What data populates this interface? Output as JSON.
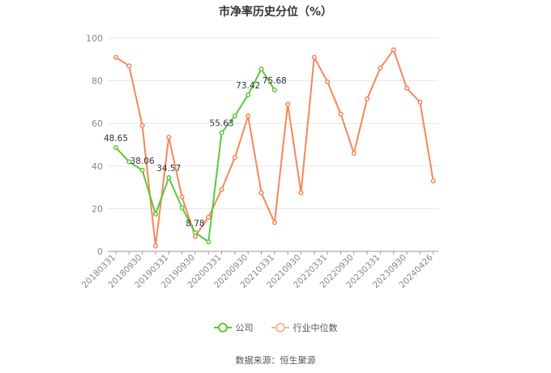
{
  "chart_data": {
    "type": "line",
    "title": "市净率历史分位（%）",
    "ylim": [
      0,
      100
    ],
    "yticks": [
      0,
      20,
      40,
      60,
      80,
      100
    ],
    "x_tick_labels": [
      "20180331",
      "20180930",
      "20190331",
      "20190930",
      "20200331",
      "20200930",
      "20210331",
      "20210930",
      "20220331",
      "20220930",
      "20230331",
      "20230930",
      "20240426"
    ],
    "grid": true,
    "legend_position": "bottom",
    "series": [
      {
        "name": "公司",
        "color": "#5cc83a",
        "x_index": [
          0,
          1,
          2,
          3,
          4,
          5,
          6,
          7,
          8,
          9,
          10,
          11,
          12
        ],
        "values": [
          48.65,
          42.0,
          38.06,
          17.5,
          34.57,
          20.5,
          8.78,
          4.5,
          55.63,
          63.5,
          73.42,
          85.5,
          75.68
        ],
        "labels": {
          "0": "48.65",
          "2": "38.06",
          "4": "34.57",
          "6": "8.78",
          "8": "55.63",
          "10": "73.42",
          "12": "75.68"
        }
      },
      {
        "name": "行业中位数",
        "color": "#f5875a",
        "x_index": [
          0,
          1,
          2,
          3,
          4,
          5,
          6,
          7,
          8,
          9,
          10,
          11,
          12,
          13,
          14,
          15,
          16,
          17,
          18,
          19,
          20,
          21,
          22,
          23,
          24
        ],
        "values": [
          91.0,
          87.0,
          59.0,
          2.5,
          53.5,
          25.5,
          7.0,
          16.0,
          29.0,
          44.0,
          63.5,
          27.5,
          13.5,
          69.0,
          27.5,
          91.0,
          79.5,
          64.5,
          46.0,
          71.5,
          86.0,
          94.5,
          76.5,
          70.0,
          33.0
        ]
      }
    ]
  },
  "legend": {
    "company": "公司",
    "industry": "行业中位数"
  },
  "source": "数据来源：恒生聚源"
}
